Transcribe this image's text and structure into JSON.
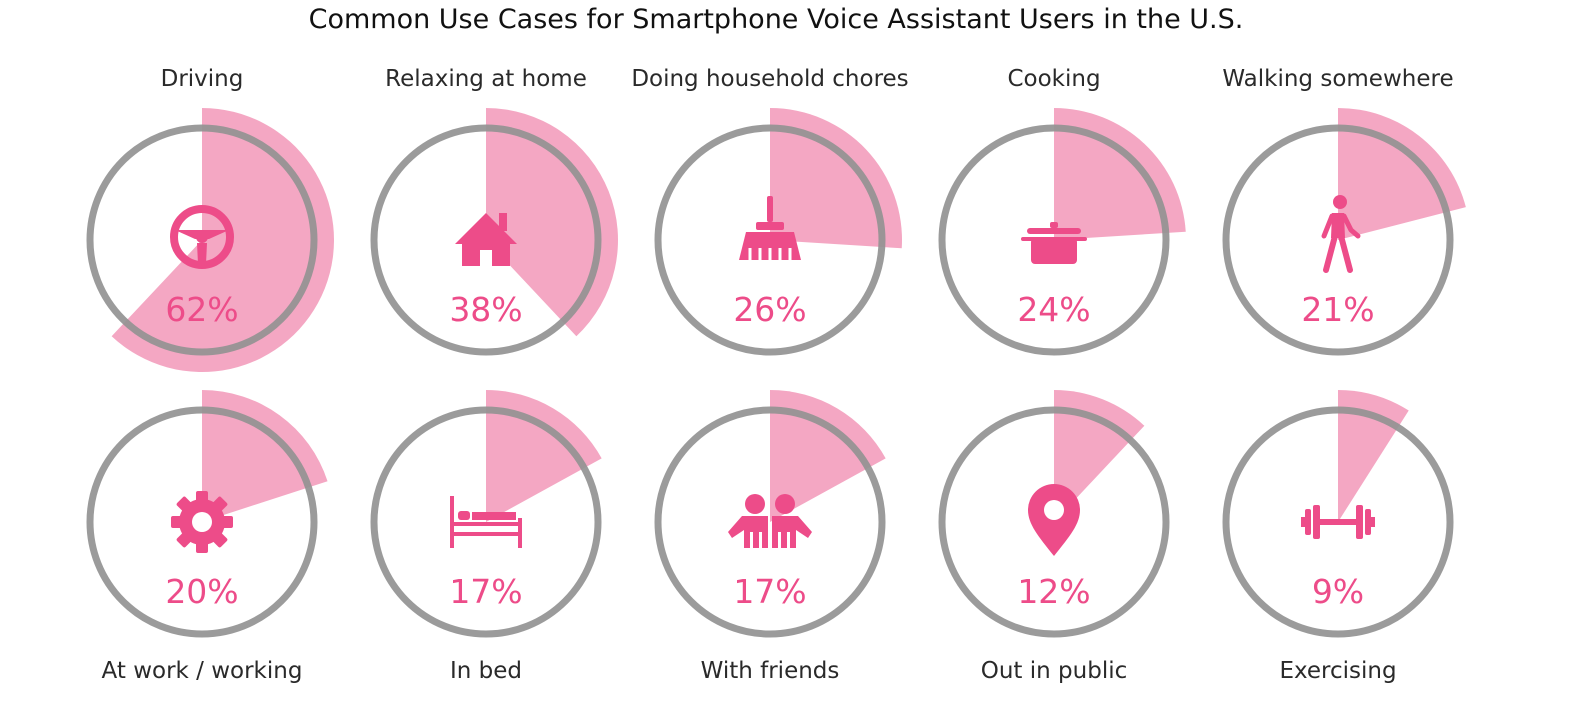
{
  "chart_data": {
    "type": "pie",
    "title": "Common Use Cases for Smartphone Voice Assistant Users in the U.S.",
    "unit": "%",
    "colors": {
      "accent": "#ED4C89",
      "wedge": "#F3A0BE",
      "ring": "#939393"
    },
    "items": [
      {
        "label": "Driving",
        "value": 62,
        "value_label": "62%",
        "icon": "steering-wheel-icon"
      },
      {
        "label": "Relaxing at home",
        "value": 38,
        "value_label": "38%",
        "icon": "house-icon"
      },
      {
        "label": "Doing household chores",
        "value": 26,
        "value_label": "26%",
        "icon": "broom-icon"
      },
      {
        "label": "Cooking",
        "value": 24,
        "value_label": "24%",
        "icon": "cooking-pot-icon"
      },
      {
        "label": "Walking somewhere",
        "value": 21,
        "value_label": "21%",
        "icon": "walking-person-icon"
      },
      {
        "label": "At work / working",
        "value": 20,
        "value_label": "20%",
        "icon": "gear-icon"
      },
      {
        "label": "In bed",
        "value": 17,
        "value_label": "17%",
        "icon": "bed-icon"
      },
      {
        "label": "With friends",
        "value": 17,
        "value_label": "17%",
        "icon": "friends-icon"
      },
      {
        "label": "Out in public",
        "value": 12,
        "value_label": "12%",
        "icon": "map-pin-icon"
      },
      {
        "label": "Exercising",
        "value": 9,
        "value_label": "9%",
        "icon": "dumbbell-icon"
      }
    ]
  }
}
